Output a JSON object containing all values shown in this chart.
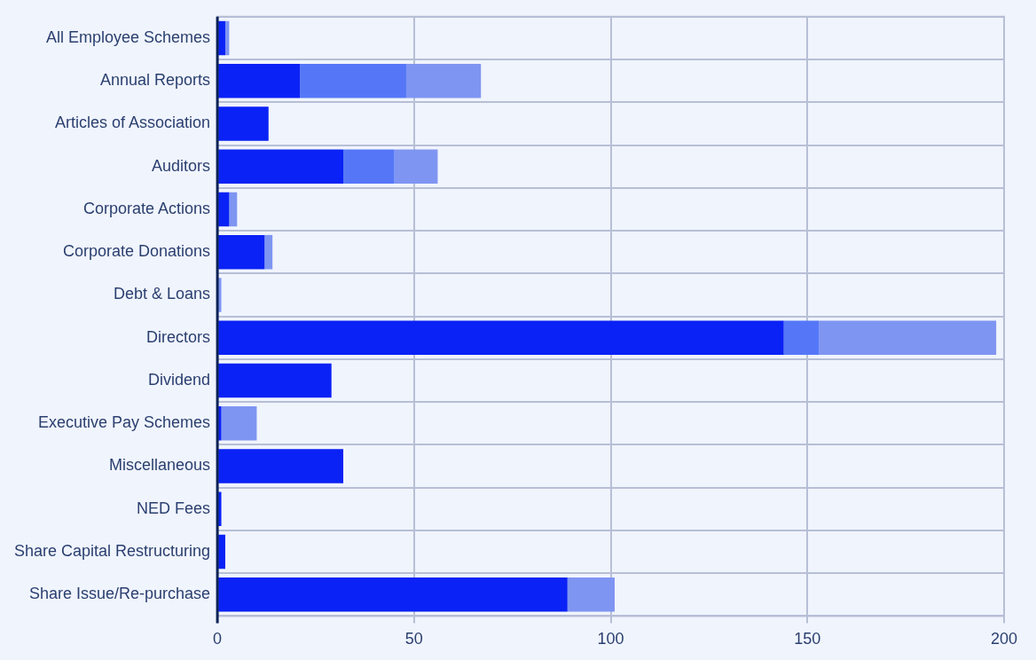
{
  "chart_data": {
    "type": "bar",
    "orientation": "horizontal",
    "stacked": true,
    "grid": true,
    "legend": false,
    "categories": [
      "All Employee Schemes",
      "Annual Reports",
      "Articles of Association",
      "Auditors",
      "Corporate Actions",
      "Corporate Donations",
      "Debt & Loans",
      "Directors",
      "Dividend",
      "Executive Pay Schemes",
      "Miscellaneous",
      "NED Fees",
      "Share Capital Restructuring",
      "Share Issue/Re-purchase"
    ],
    "series": [
      {
        "color": "#0a22f5",
        "values": [
          2,
          21,
          13,
          32,
          3,
          12,
          0,
          144,
          29,
          1,
          32,
          1,
          2,
          89
        ]
      },
      {
        "color": "#5577f7",
        "values": [
          0,
          27,
          0,
          13,
          0,
          0,
          0,
          9,
          0,
          0,
          0,
          0,
          0,
          0
        ]
      },
      {
        "color": "#7f95f2",
        "values": [
          1,
          19,
          0,
          11,
          2,
          2,
          1,
          45,
          0,
          9,
          0,
          0,
          0,
          12
        ]
      }
    ],
    "xlim": [
      0,
      200
    ],
    "xticks": [
      0,
      50,
      100,
      150,
      200
    ]
  }
}
